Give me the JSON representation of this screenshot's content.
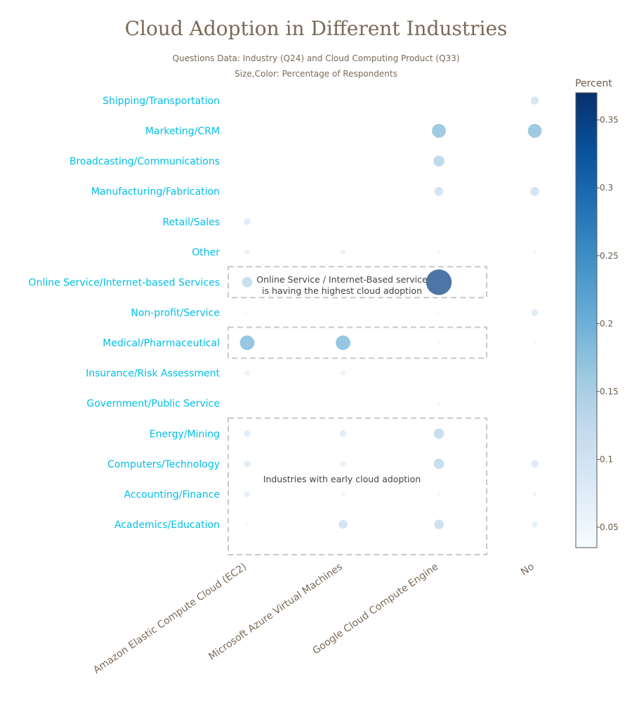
{
  "chart_data": {
    "type": "scatter",
    "title": "Cloud Adoption in Different Industries",
    "subtitle_lines": [
      "Questions Data: Industry (Q24) and Cloud Computing Product (Q33)",
      "Size,Color: Percentage of Respondents"
    ],
    "x_categories": [
      "Amazon Elastic Compute Cloud (EC2)",
      "Microsoft Azure Virtual Machines",
      "Google Cloud Compute Engine",
      "No"
    ],
    "y_categories": [
      "Shipping/Transportation",
      "Marketing/CRM",
      "Broadcasting/Communications",
      "Manufacturing/Fabrication",
      "Retail/Sales",
      "Other",
      "Online Service/Internet-based Services",
      "Non-profit/Service",
      "Medical/Pharmaceutical",
      "Insurance/Risk Assessment",
      "Government/Public Service",
      "Energy/Mining",
      "Computers/Technology",
      "Accounting/Finance",
      "Academics/Education"
    ],
    "points": [
      {
        "industry": "Shipping/Transportation",
        "product": "No",
        "value": 0.11
      },
      {
        "industry": "Marketing/CRM",
        "product": "Google Cloud Compute Engine",
        "value": 0.19
      },
      {
        "industry": "Marketing/CRM",
        "product": "No",
        "value": 0.19
      },
      {
        "industry": "Broadcasting/Communications",
        "product": "Google Cloud Compute Engine",
        "value": 0.15
      },
      {
        "industry": "Manufacturing/Fabrication",
        "product": "Microsoft Azure Virtual Machines",
        "value": 0.04
      },
      {
        "industry": "Manufacturing/Fabrication",
        "product": "Google Cloud Compute Engine",
        "value": 0.12
      },
      {
        "industry": "Manufacturing/Fabrication",
        "product": "No",
        "value": 0.12
      },
      {
        "industry": "Retail/Sales",
        "product": "Amazon Elastic Compute Cloud (EC2)",
        "value": 0.09
      },
      {
        "industry": "Retail/Sales",
        "product": "Google Cloud Compute Engine",
        "value": 0.03
      },
      {
        "industry": "Other",
        "product": "Amazon Elastic Compute Cloud (EC2)",
        "value": 0.07
      },
      {
        "industry": "Other",
        "product": "Microsoft Azure Virtual Machines",
        "value": 0.07
      },
      {
        "industry": "Other",
        "product": "Google Cloud Compute Engine",
        "value": 0.05
      },
      {
        "industry": "Other",
        "product": "No",
        "value": 0.05
      },
      {
        "industry": "Online Service/Internet-based Services",
        "product": "Amazon Elastic Compute Cloud (EC2)",
        "value": 0.14
      },
      {
        "industry": "Online Service/Internet-based Services",
        "product": "Google Cloud Compute Engine",
        "value": 0.35
      },
      {
        "industry": "Online Service/Internet-based Services",
        "product": "No",
        "value": 0.03
      },
      {
        "industry": "Non-profit/Service",
        "product": "Amazon Elastic Compute Cloud (EC2)",
        "value": 0.05
      },
      {
        "industry": "Non-profit/Service",
        "product": "Google Cloud Compute Engine",
        "value": 0.05
      },
      {
        "industry": "Non-profit/Service",
        "product": "No",
        "value": 0.09
      },
      {
        "industry": "Medical/Pharmaceutical",
        "product": "Amazon Elastic Compute Cloud (EC2)",
        "value": 0.2
      },
      {
        "industry": "Medical/Pharmaceutical",
        "product": "Microsoft Azure Virtual Machines",
        "value": 0.2
      },
      {
        "industry": "Medical/Pharmaceutical",
        "product": "Google Cloud Compute Engine",
        "value": 0.05
      },
      {
        "industry": "Medical/Pharmaceutical",
        "product": "No",
        "value": 0.05
      },
      {
        "industry": "Insurance/Risk Assessment",
        "product": "Amazon Elastic Compute Cloud (EC2)",
        "value": 0.07
      },
      {
        "industry": "Insurance/Risk Assessment",
        "product": "Microsoft Azure Virtual Machines",
        "value": 0.07
      },
      {
        "industry": "Government/Public Service",
        "product": "Amazon Elastic Compute Cloud (EC2)",
        "value": 0.03
      },
      {
        "industry": "Government/Public Service",
        "product": "Microsoft Azure Virtual Machines",
        "value": 0.03
      },
      {
        "industry": "Government/Public Service",
        "product": "Google Cloud Compute Engine",
        "value": 0.05
      },
      {
        "industry": "Government/Public Service",
        "product": "No",
        "value": 0.03
      },
      {
        "industry": "Energy/Mining",
        "product": "Amazon Elastic Compute Cloud (EC2)",
        "value": 0.09
      },
      {
        "industry": "Energy/Mining",
        "product": "Microsoft Azure Virtual Machines",
        "value": 0.09
      },
      {
        "industry": "Energy/Mining",
        "product": "Google Cloud Compute Engine",
        "value": 0.14
      },
      {
        "industry": "Computers/Technology",
        "product": "Amazon Elastic Compute Cloud (EC2)",
        "value": 0.09
      },
      {
        "industry": "Computers/Technology",
        "product": "Microsoft Azure Virtual Machines",
        "value": 0.08
      },
      {
        "industry": "Computers/Technology",
        "product": "Google Cloud Compute Engine",
        "value": 0.14
      },
      {
        "industry": "Computers/Technology",
        "product": "No",
        "value": 0.1
      },
      {
        "industry": "Accounting/Finance",
        "product": "Amazon Elastic Compute Cloud (EC2)",
        "value": 0.08
      },
      {
        "industry": "Accounting/Finance",
        "product": "Microsoft Azure Virtual Machines",
        "value": 0.06
      },
      {
        "industry": "Accounting/Finance",
        "product": "Google Cloud Compute Engine",
        "value": 0.05
      },
      {
        "industry": "Accounting/Finance",
        "product": "No",
        "value": 0.06
      },
      {
        "industry": "Academics/Education",
        "product": "Amazon Elastic Compute Cloud (EC2)",
        "value": 0.05
      },
      {
        "industry": "Academics/Education",
        "product": "Microsoft Azure Virtual Machines",
        "value": 0.12
      },
      {
        "industry": "Academics/Education",
        "product": "Google Cloud Compute Engine",
        "value": 0.13
      },
      {
        "industry": "Academics/Education",
        "product": "No",
        "value": 0.08
      }
    ],
    "colorbar": {
      "title": "Percent",
      "range": [
        0.035,
        0.37
      ],
      "ticks": [
        0.05,
        0.1,
        0.15,
        0.2,
        0.25,
        0.3,
        0.35
      ],
      "colorscale": [
        "#f7fbff",
        "#deebf7",
        "#c6dbef",
        "#9ecae1",
        "#6baed6",
        "#4292c6",
        "#2171b5",
        "#08519c",
        "#08306b"
      ]
    },
    "annotations": [
      {
        "lines": [
          "Online Service / Internet-Based service",
          "is having the highest cloud adoption"
        ]
      },
      {
        "lines": [
          "Industries with early cloud adoption"
        ]
      }
    ],
    "highlight_boxes": [
      {
        "from_industry": "Online Service/Internet-based Services",
        "to_industry": "Online Service/Internet-based Services"
      },
      {
        "from_industry": "Medical/Pharmaceutical",
        "to_industry": "Medical/Pharmaceutical"
      },
      {
        "from_industry": "Energy/Mining",
        "to_industry": "Academics/Education"
      }
    ],
    "ytick_color": "#00bfe6",
    "text_color": "#7a6a58",
    "grid": false,
    "legend": "colorbar-right"
  }
}
